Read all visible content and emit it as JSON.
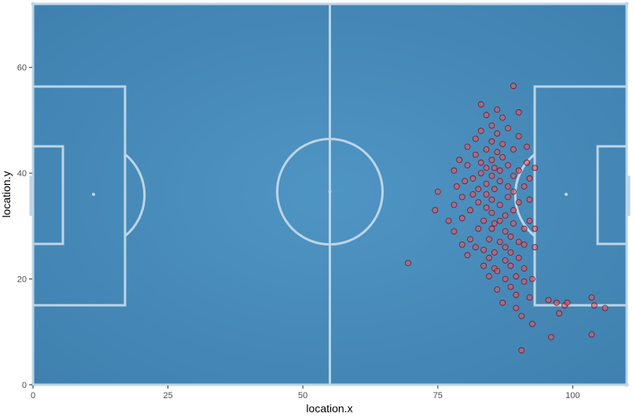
{
  "chart_data": {
    "type": "scatter",
    "title": "",
    "xlabel": "location.x",
    "ylabel": "location.y",
    "xlim": [
      0,
      110
    ],
    "ylim": [
      0,
      72
    ],
    "x_ticks": [
      0,
      25,
      50,
      75,
      100
    ],
    "y_ticks": [
      0,
      20,
      40,
      60
    ],
    "x_tick_labels": [
      "0",
      "25",
      "50",
      "75",
      "100"
    ],
    "y_tick_labels": [
      "0",
      "20",
      "40",
      "60"
    ],
    "grid": false,
    "legend": "none",
    "background_color": "#4a8fbe",
    "line_color": "#bcd5e6",
    "point_color": "#e05a6a",
    "points": [
      [
        69.5,
        23.0
      ],
      [
        74.5,
        33.0
      ],
      [
        75.0,
        36.5
      ],
      [
        77.0,
        31.0
      ],
      [
        78.0,
        29.0
      ],
      [
        78.0,
        34.0
      ],
      [
        78.5,
        37.5
      ],
      [
        78.0,
        40.5
      ],
      [
        79.0,
        42.5
      ],
      [
        79.5,
        26.5
      ],
      [
        79.5,
        31.5
      ],
      [
        79.5,
        35.5
      ],
      [
        80.0,
        38.5
      ],
      [
        80.5,
        41.5
      ],
      [
        80.5,
        45.0
      ],
      [
        80.5,
        24.5
      ],
      [
        81.0,
        27.5
      ],
      [
        81.0,
        33.0
      ],
      [
        81.5,
        36.0
      ],
      [
        81.5,
        39.0
      ],
      [
        82.0,
        43.5
      ],
      [
        82.0,
        46.5
      ],
      [
        82.0,
        26.0
      ],
      [
        82.5,
        29.5
      ],
      [
        82.5,
        34.5
      ],
      [
        82.5,
        37.0
      ],
      [
        83.0,
        40.0
      ],
      [
        83.0,
        42.0
      ],
      [
        83.0,
        48.0
      ],
      [
        83.0,
        53.0
      ],
      [
        83.5,
        22.5
      ],
      [
        83.5,
        25.5
      ],
      [
        83.5,
        31.0
      ],
      [
        84.0,
        33.5
      ],
      [
        84.0,
        36.0
      ],
      [
        84.0,
        38.0
      ],
      [
        84.0,
        41.0
      ],
      [
        84.0,
        44.5
      ],
      [
        84.0,
        51.0
      ],
      [
        84.5,
        20.5
      ],
      [
        84.5,
        24.0
      ],
      [
        84.5,
        27.5
      ],
      [
        85.0,
        29.5
      ],
      [
        85.0,
        32.5
      ],
      [
        85.0,
        35.0
      ],
      [
        85.0,
        39.5
      ],
      [
        85.0,
        42.5
      ],
      [
        85.0,
        46.0
      ],
      [
        85.0,
        49.0
      ],
      [
        85.5,
        22.0
      ],
      [
        85.5,
        25.0
      ],
      [
        85.5,
        30.5
      ],
      [
        85.5,
        37.0
      ],
      [
        85.5,
        41.0
      ],
      [
        86.0,
        44.0
      ],
      [
        86.0,
        47.5
      ],
      [
        86.0,
        52.0
      ],
      [
        86.0,
        18.0
      ],
      [
        86.0,
        21.5
      ],
      [
        86.5,
        27.0
      ],
      [
        86.5,
        31.0
      ],
      [
        86.5,
        34.0
      ],
      [
        86.5,
        38.5
      ],
      [
        86.5,
        40.5
      ],
      [
        87.0,
        43.0
      ],
      [
        87.0,
        45.5
      ],
      [
        87.0,
        50.5
      ],
      [
        87.0,
        15.5
      ],
      [
        87.5,
        20.0
      ],
      [
        87.5,
        23.5
      ],
      [
        87.5,
        26.0
      ],
      [
        87.5,
        29.0
      ],
      [
        87.5,
        32.0
      ],
      [
        88.0,
        35.5
      ],
      [
        88.0,
        37.5
      ],
      [
        88.0,
        41.5
      ],
      [
        88.0,
        48.5
      ],
      [
        88.5,
        18.5
      ],
      [
        88.5,
        22.5
      ],
      [
        88.5,
        25.0
      ],
      [
        88.5,
        28.0
      ],
      [
        89.0,
        30.5
      ],
      [
        89.0,
        33.0
      ],
      [
        89.0,
        36.5
      ],
      [
        89.0,
        39.5
      ],
      [
        89.0,
        44.5
      ],
      [
        89.0,
        56.5
      ],
      [
        89.5,
        14.5
      ],
      [
        89.5,
        17.0
      ],
      [
        89.5,
        20.5
      ],
      [
        90.0,
        24.0
      ],
      [
        90.0,
        27.0
      ],
      [
        90.0,
        34.5
      ],
      [
        90.0,
        40.5
      ],
      [
        90.0,
        47.0
      ],
      [
        90.0,
        51.5
      ],
      [
        90.5,
        6.5
      ],
      [
        90.5,
        13.0
      ],
      [
        91.0,
        19.5
      ],
      [
        91.0,
        22.0
      ],
      [
        91.0,
        26.5
      ],
      [
        91.0,
        29.5
      ],
      [
        91.0,
        37.5
      ],
      [
        91.5,
        42.0
      ],
      [
        91.5,
        45.0
      ],
      [
        92.0,
        16.5
      ],
      [
        92.0,
        31.0
      ],
      [
        92.0,
        35.0
      ],
      [
        92.0,
        39.0
      ],
      [
        92.5,
        11.5
      ],
      [
        92.5,
        20.0
      ],
      [
        93.0,
        26.0
      ],
      [
        93.0,
        29.5
      ],
      [
        93.0,
        41.0
      ],
      [
        95.5,
        16.0
      ],
      [
        96.0,
        9.0
      ],
      [
        97.0,
        15.5
      ],
      [
        97.5,
        13.5
      ],
      [
        98.5,
        15.0
      ],
      [
        99.0,
        15.5
      ],
      [
        103.5,
        16.5
      ],
      [
        103.5,
        9.5
      ],
      [
        104.0,
        15.0
      ],
      [
        106.0,
        14.5
      ]
    ]
  }
}
